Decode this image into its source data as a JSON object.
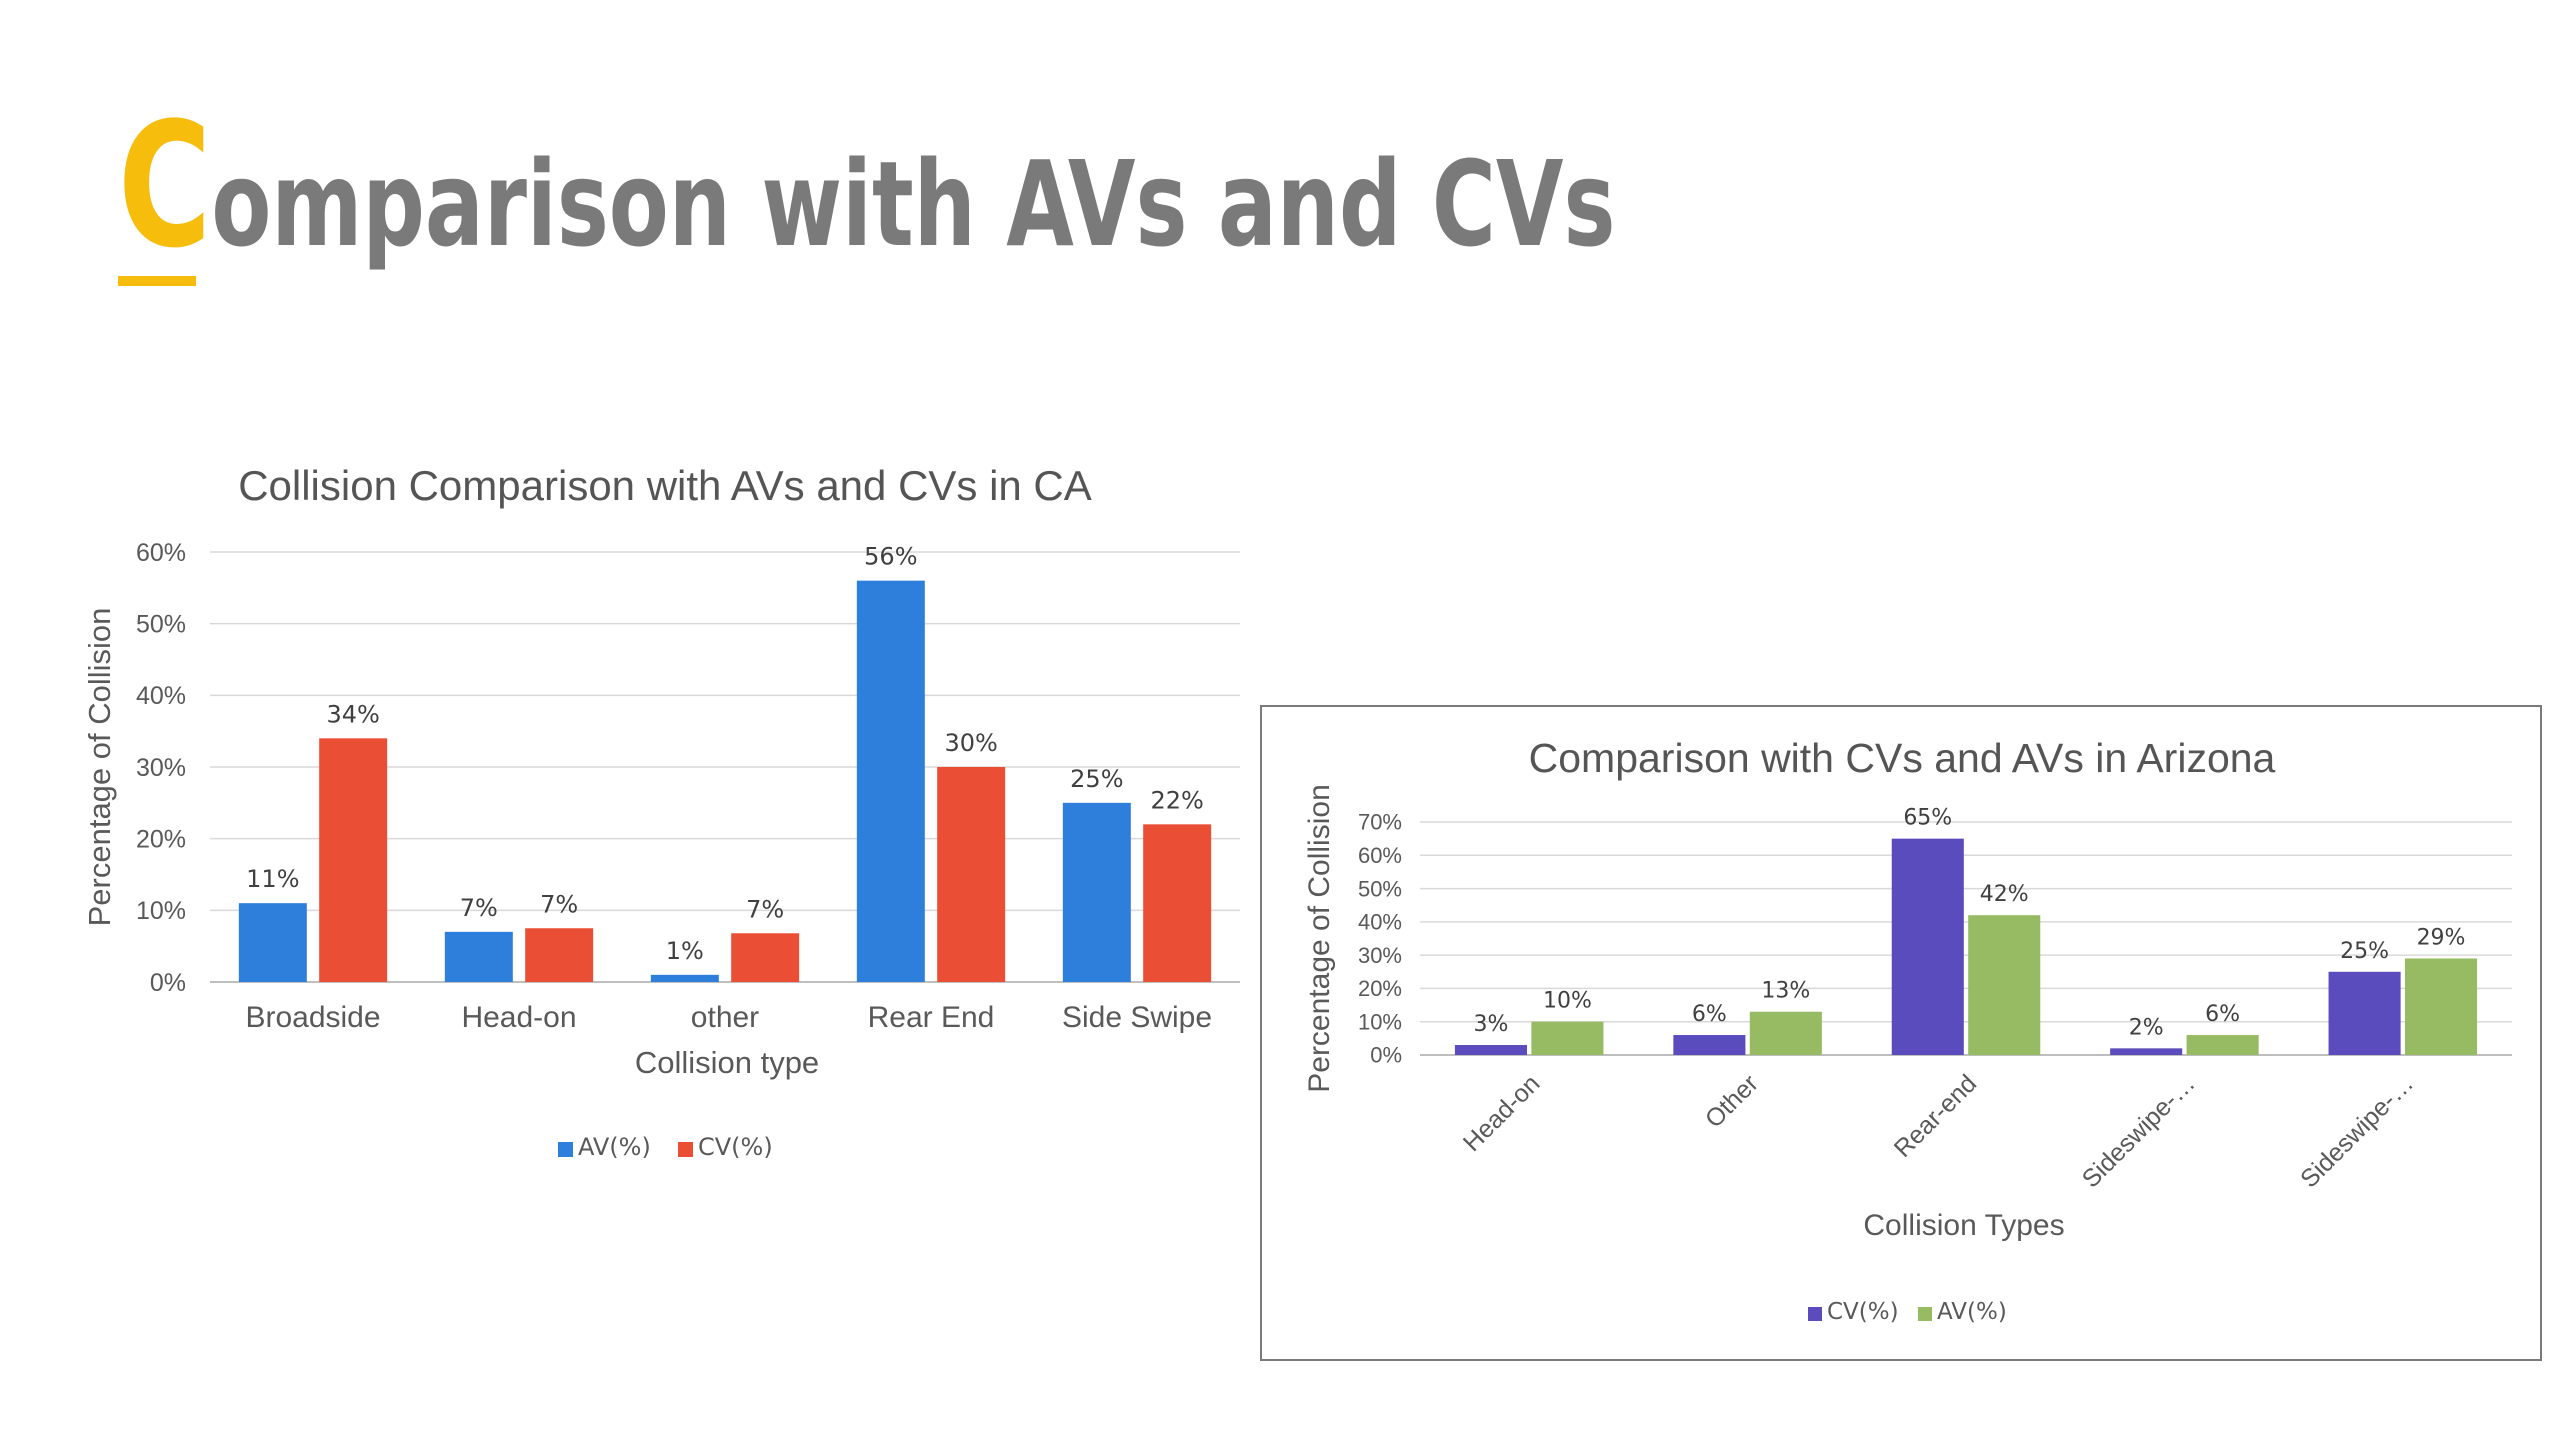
{
  "slide": {
    "title_first_letter": "C",
    "title_rest": "omparison with AVs and CVs"
  },
  "colors": {
    "accent": "#f6bd0c",
    "title_gray": "#7a7a7a",
    "ca_av": "#2e7fdc",
    "ca_cv": "#ea4e34",
    "az_cv": "#5a4cbc",
    "az_av": "#97bb62"
  },
  "chart_data": [
    {
      "type": "bar",
      "title": "Collision Comparison with AVs and CVs in CA",
      "xlabel": "Collision type",
      "ylabel": "Percentage of Collision",
      "categories": [
        "Broadside",
        "Head-on",
        "other",
        "Rear End",
        "Side Swipe"
      ],
      "series": [
        {
          "name": "AV(%)",
          "values": [
            11,
            7,
            1,
            56,
            25
          ],
          "labels": [
            "11%",
            "7%",
            "1%",
            "56%",
            "25%"
          ]
        },
        {
          "name": "CV(%)",
          "values": [
            34,
            7.5,
            6.8,
            30,
            22
          ],
          "labels": [
            "34%",
            "7%",
            "7%",
            "30%",
            "22%"
          ]
        }
      ],
      "ylim": [
        0,
        60
      ],
      "yticks": [
        "0%",
        "10%",
        "20%",
        "30%",
        "40%",
        "50%",
        "60%"
      ],
      "grid": true,
      "legend_position": "bottom"
    },
    {
      "type": "bar",
      "title": "Comparison with CVs and AVs in Arizona",
      "xlabel": "Collision Types",
      "ylabel": "Percentage of Collision",
      "categories": [
        "Head-on",
        "Other",
        "Rear-end",
        "Sideswipe-…",
        "Sideswipe-…"
      ],
      "series": [
        {
          "name": "CV(%)",
          "values": [
            3,
            6,
            65,
            2,
            25
          ],
          "labels": [
            "3%",
            "6%",
            "65%",
            "2%",
            "25%"
          ]
        },
        {
          "name": "AV(%)",
          "values": [
            10,
            13,
            42,
            6,
            29
          ],
          "labels": [
            "10%",
            "13%",
            "42%",
            "6%",
            "29%"
          ]
        }
      ],
      "ylim": [
        0,
        70
      ],
      "yticks": [
        "0%",
        "10%",
        "20%",
        "30%",
        "40%",
        "50%",
        "60%",
        "70%"
      ],
      "grid": true,
      "legend_position": "bottom"
    }
  ]
}
